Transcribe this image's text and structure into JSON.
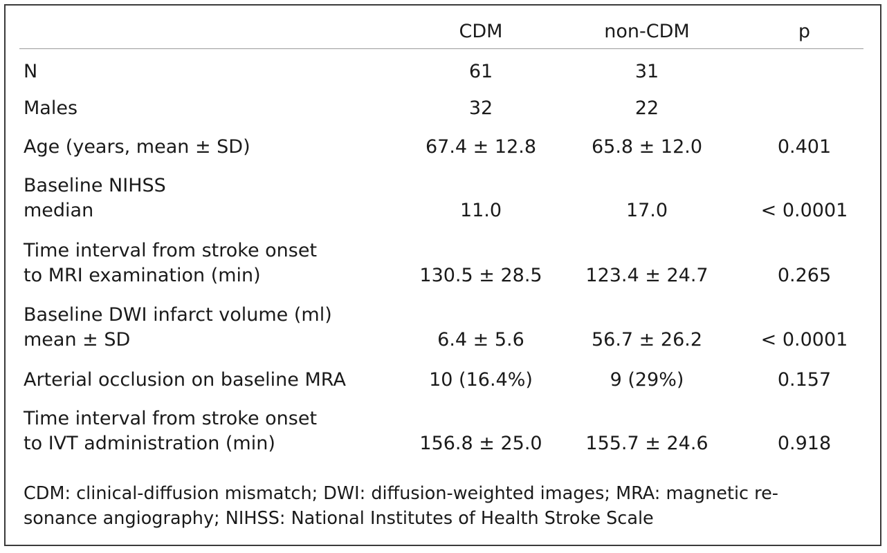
{
  "table": {
    "headers": [
      "CDM",
      "non-CDM",
      "p"
    ],
    "rows": [
      {
        "label": [
          "N"
        ],
        "cdm": "61",
        "non_cdm": "31",
        "p": ""
      },
      {
        "label": [
          "Males"
        ],
        "cdm": "32",
        "non_cdm": "22",
        "p": ""
      },
      {
        "label": [
          "Age (years, mean ± SD)"
        ],
        "cdm": "67.4 ± 12.8",
        "non_cdm": "65.8 ± 12.0",
        "p": "0.401"
      },
      {
        "label": [
          "Baseline NIHSS",
          "median"
        ],
        "cdm": "11.0",
        "non_cdm": "17.0",
        "p": "< 0.0001"
      },
      {
        "label": [
          "Time interval from stroke onset",
          "to MRI examination (min)"
        ],
        "cdm": "130.5 ± 28.5",
        "non_cdm": "123.4 ± 24.7",
        "p": "0.265"
      },
      {
        "label": [
          "Baseline DWI infarct volume (ml)",
          "mean ± SD"
        ],
        "cdm": "6.4 ± 5.6",
        "non_cdm": "56.7 ± 26.2",
        "p": "< 0.0001"
      },
      {
        "label": [
          "Arterial occlusion on baseline MRA"
        ],
        "cdm": "10 (16.4%)",
        "non_cdm": "9 (29%)",
        "p": "0.157"
      },
      {
        "label": [
          "Time interval from stroke onset",
          "to IVT administration (min)"
        ],
        "cdm": "156.8 ± 25.0",
        "non_cdm": "155.7 ± 24.6",
        "p": "0.918"
      }
    ],
    "footnote": [
      "CDM: clinical-diffusion mismatch; DWI: diffusion-weighted images; MRA: magnetic re-",
      "sonance angiography; NIHSS: National Institutes of Health Stroke Scale"
    ]
  }
}
